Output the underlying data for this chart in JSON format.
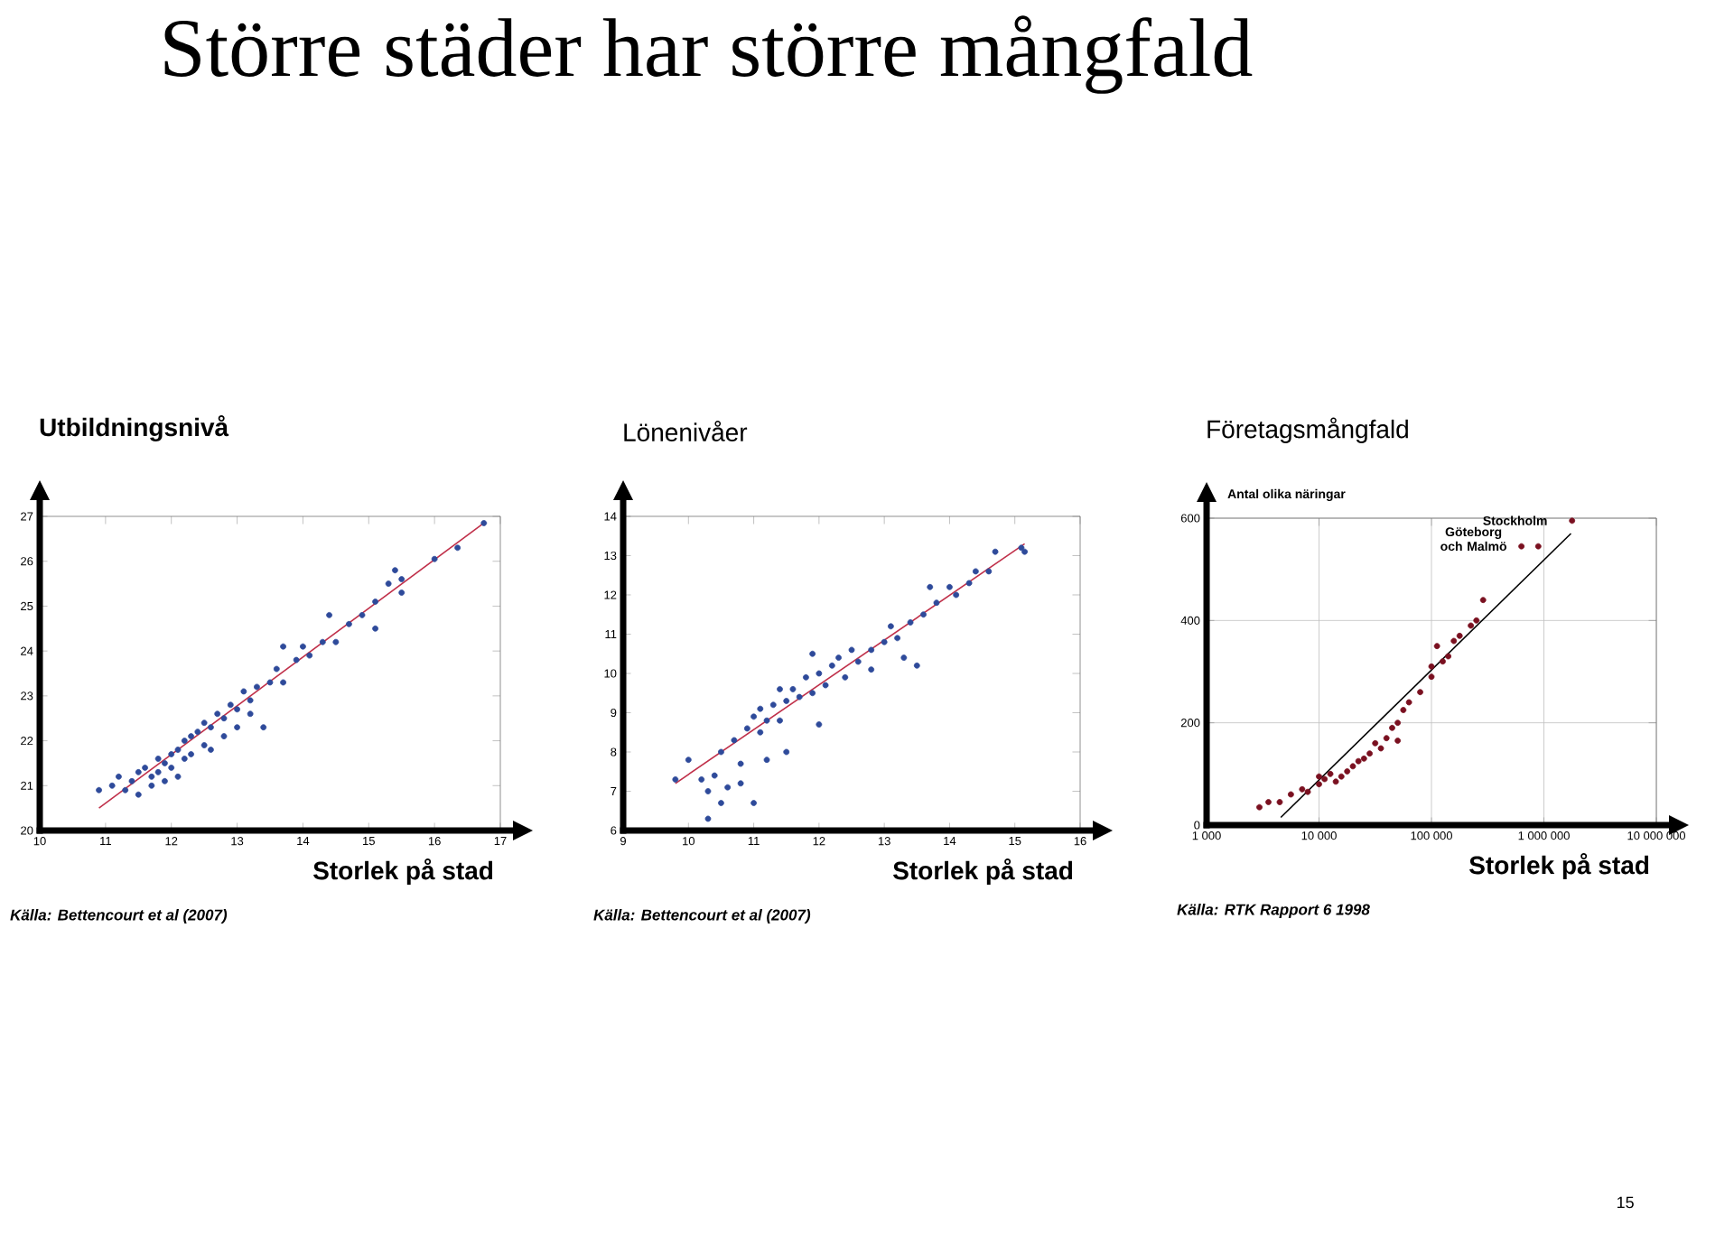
{
  "chart_data": [
    {
      "type": "scatter",
      "title": "Utbildningsnivå",
      "xlabel": "Storlek på stad",
      "marker": "circle",
      "annotations": [
        "Källa: Bettencourt et al (2007)",
        "Större städer har större mångfald"
      ],
      "xlim": [
        10,
        17
      ],
      "ylim": [
        20,
        27
      ],
      "xticks": [
        10,
        11,
        12,
        13,
        14,
        15,
        16,
        17
      ],
      "yticks": [
        20,
        21,
        22,
        23,
        24,
        25,
        26,
        27
      ],
      "series": [
        {
          "color": "#2e4a9a",
          "x": [
            10.9,
            11.1,
            11.2,
            11.3,
            11.4,
            11.5,
            11.5,
            11.6,
            11.7,
            11.7,
            11.8,
            11.8,
            11.9,
            11.9,
            12.0,
            12.0,
            12.1,
            12.1,
            12.2,
            12.2,
            12.3,
            12.3,
            12.4,
            12.5,
            12.5,
            12.6,
            12.6,
            12.7,
            12.8,
            12.8,
            12.9,
            13.0,
            13.0,
            13.1,
            13.2,
            13.2,
            13.3,
            13.4,
            13.5,
            13.6,
            13.7,
            13.7,
            13.9,
            14.0,
            14.1,
            14.3,
            14.4,
            14.5,
            14.7,
            14.9,
            15.1,
            15.1,
            15.3,
            15.4,
            15.5,
            15.5,
            16.0,
            16.35,
            16.75
          ],
          "values": [
            20.9,
            21.0,
            21.2,
            20.9,
            21.1,
            21.3,
            20.8,
            21.4,
            21.2,
            21.0,
            21.6,
            21.3,
            21.5,
            21.1,
            21.7,
            21.4,
            21.8,
            21.2,
            22.0,
            21.6,
            22.1,
            21.7,
            22.2,
            21.9,
            22.4,
            22.3,
            21.8,
            22.6,
            22.5,
            22.1,
            22.8,
            22.7,
            22.3,
            23.1,
            22.9,
            22.6,
            23.2,
            22.3,
            23.3,
            23.6,
            23.3,
            24.1,
            23.8,
            24.1,
            23.9,
            24.2,
            24.8,
            24.2,
            24.6,
            24.8,
            24.5,
            25.1,
            25.5,
            25.8,
            25.3,
            25.6,
            26.05,
            26.3,
            26.85
          ]
        },
        {
          "type": "line",
          "marker": "none",
          "color": "#c0304a",
          "x": [
            10.9,
            16.75
          ],
          "values": [
            20.5,
            26.85
          ]
        }
      ]
    },
    {
      "type": "scatter",
      "title": "Lönenivåer",
      "xlabel": "Storlek på stad",
      "marker": "circle",
      "annotations": [
        "Källa: Bettencourt et al (2007)"
      ],
      "xlim": [
        9,
        16
      ],
      "ylim": [
        6,
        14
      ],
      "xticks": [
        9,
        10,
        11,
        12,
        13,
        14,
        15,
        16
      ],
      "yticks": [
        6,
        7,
        8,
        9,
        10,
        11,
        12,
        13,
        14
      ],
      "series": [
        {
          "color": "#2e4a9a",
          "x": [
            9.8,
            10.0,
            10.2,
            10.3,
            10.3,
            10.4,
            10.5,
            10.5,
            10.6,
            10.7,
            10.8,
            10.8,
            10.9,
            11.0,
            11.0,
            11.1,
            11.1,
            11.2,
            11.2,
            11.3,
            11.4,
            11.4,
            11.5,
            11.5,
            11.6,
            11.7,
            11.8,
            11.9,
            11.9,
            12.0,
            12.0,
            12.1,
            12.2,
            12.3,
            12.4,
            12.5,
            12.6,
            12.8,
            12.8,
            13.0,
            13.1,
            13.2,
            13.3,
            13.4,
            13.5,
            13.6,
            13.7,
            13.8,
            14.0,
            14.1,
            14.3,
            14.4,
            14.6,
            14.7,
            15.1,
            15.15
          ],
          "values": [
            7.3,
            7.8,
            7.3,
            7.0,
            6.3,
            7.4,
            6.7,
            8.0,
            7.1,
            8.3,
            7.7,
            7.2,
            8.6,
            6.7,
            8.9,
            8.5,
            9.1,
            7.8,
            8.8,
            9.2,
            8.8,
            9.6,
            8.0,
            9.3,
            9.6,
            9.4,
            9.9,
            9.5,
            10.5,
            8.7,
            10.0,
            9.7,
            10.2,
            10.4,
            9.9,
            10.6,
            10.3,
            10.6,
            10.1,
            10.8,
            11.2,
            10.9,
            10.4,
            11.3,
            10.2,
            11.5,
            12.2,
            11.8,
            12.2,
            12.0,
            12.3,
            12.6,
            12.6,
            13.1,
            13.2,
            13.1
          ]
        },
        {
          "type": "line",
          "marker": "none",
          "color": "#c0304a",
          "x": [
            9.8,
            15.15
          ],
          "values": [
            7.2,
            13.3
          ]
        }
      ]
    },
    {
      "type": "scatter",
      "title": "Företagsmångfald",
      "xlabel": "Storlek på stad",
      "ylabel": "Antal olika näringar",
      "marker": "circle",
      "log": "x",
      "grid": true,
      "annotations": [
        "Källa: RTK Rapport 6 1998",
        "15",
        {
          "text": "Stockholm",
          "x": 1780000,
          "y": 595
        },
        {
          "text": "Göteborg och Malmö",
          "x": 760000,
          "y": 545
        }
      ],
      "xlim": [
        1000,
        10000000
      ],
      "ylim": [
        0,
        600
      ],
      "xticks": [
        {
          "value": 1000,
          "label": "1 000"
        },
        {
          "value": 10000,
          "label": "10 000"
        },
        {
          "value": 100000,
          "label": "100 000"
        },
        {
          "value": 1000000,
          "label": "1 000 000"
        },
        {
          "value": 10000000,
          "label": "10 000 000"
        }
      ],
      "yticks": [
        0,
        200,
        400,
        600
      ],
      "series": [
        {
          "color": "#7a1020",
          "x": [
            2950,
            3550,
            4470,
            5620,
            7080,
            7940,
            10000,
            10000,
            11200,
            12600,
            14100,
            15800,
            17800,
            20000,
            22400,
            25100,
            28200,
            31600,
            35500,
            39800,
            44700,
            50100,
            50100,
            56200,
            63100,
            79400,
            100000,
            100000,
            112000,
            126000,
            141000,
            158000,
            178000,
            224000,
            251000,
            288000,
            631000,
            891000,
            1780000
          ],
          "values": [
            35,
            45,
            45,
            60,
            70,
            65,
            80,
            95,
            90,
            100,
            85,
            95,
            105,
            115,
            125,
            130,
            140,
            160,
            150,
            170,
            190,
            200,
            165,
            225,
            240,
            260,
            290,
            310,
            350,
            320,
            330,
            360,
            370,
            390,
            400,
            440,
            545,
            545,
            595
          ]
        },
        {
          "type": "line",
          "marker": "none",
          "color": "#000000",
          "x": [
            4570,
            1740000
          ],
          "values": [
            15,
            570
          ]
        }
      ]
    }
  ]
}
